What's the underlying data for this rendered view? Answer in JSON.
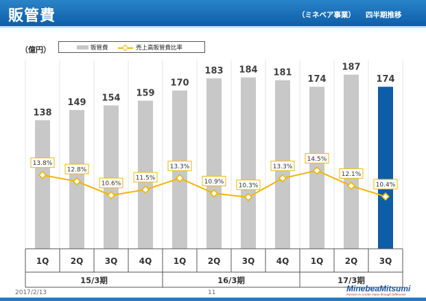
{
  "header": {
    "title": "販管費",
    "subtitle_segment": "（ミネベア事業）",
    "subtitle_trend": "四半期推移"
  },
  "chart_data": {
    "type": "bar",
    "unit_label": "（億円）",
    "categories": [
      "1Q",
      "2Q",
      "3Q",
      "4Q",
      "1Q",
      "2Q",
      "3Q",
      "4Q",
      "1Q",
      "2Q",
      "3Q"
    ],
    "groups": [
      {
        "label": "15/3期",
        "count": 4
      },
      {
        "label": "16/3期",
        "count": 4
      },
      {
        "label": "17/3期",
        "count": 3
      }
    ],
    "series": [
      {
        "name": "販管費",
        "type": "bar",
        "values": [
          138,
          149,
          154,
          159,
          170,
          183,
          184,
          181,
          174,
          187,
          174
        ]
      },
      {
        "name": "売上高販管費比率",
        "type": "line",
        "values": [
          "13.8%",
          "12.8%",
          "10.6%",
          "11.5%",
          "13.3%",
          "10.9%",
          "10.3%",
          "13.3%",
          "14.5%",
          "12.1%",
          "10.4%"
        ]
      }
    ],
    "ratio_numeric": [
      13.8,
      12.8,
      10.6,
      11.5,
      13.3,
      10.9,
      10.3,
      13.3,
      14.5,
      12.1,
      10.4
    ],
    "highlight_index": 10,
    "colors": {
      "bar": "#c8c8c8",
      "highlight": "#0d5ea8",
      "line": "#f2b600"
    }
  },
  "footer": {
    "date": "2017/2/13",
    "page": "11",
    "logo_main": "MinebeaMitsumi",
    "logo_sub": "Passion to Create Value through Difference"
  }
}
